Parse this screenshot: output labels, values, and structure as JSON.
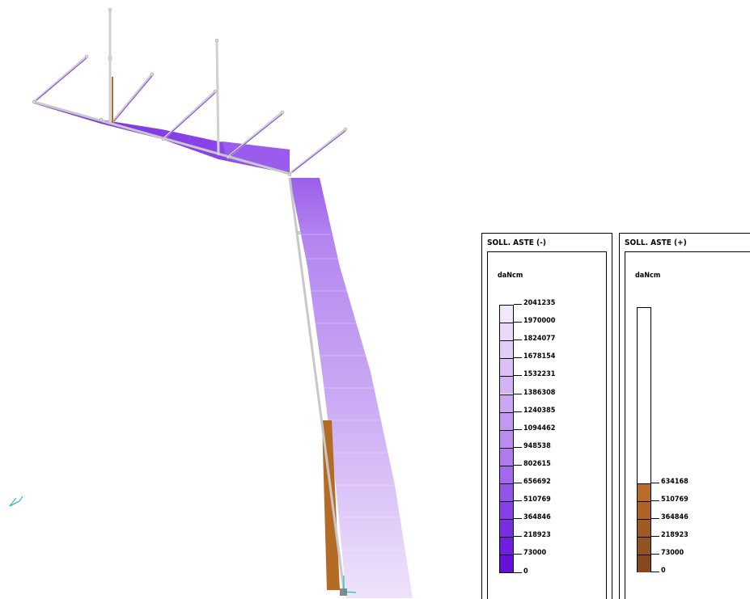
{
  "legend_neg": {
    "title": "SOLL. ASTE (-)",
    "unit": "daNcm",
    "levels": [
      "2041235",
      "1970000",
      "1824077",
      "1678154",
      "1532231",
      "1386308",
      "1240385",
      "1094462",
      "948538",
      "802615",
      "656692",
      "510769",
      "364846",
      "218923",
      "73000",
      "0"
    ],
    "colors": [
      "#f2e8fb",
      "#e9dafa",
      "#e2cdf8",
      "#dac0f6",
      "#d3b3f4",
      "#cba6f2",
      "#c398f0",
      "#bc8bee",
      "#b07aec",
      "#a468ea",
      "#9554e8",
      "#8740e5",
      "#7a2ee2",
      "#6f20dd",
      "#6512d8",
      "#5e06d2"
    ]
  },
  "legend_pos": {
    "title": "SOLL. ASTE (+)",
    "unit": "daNcm",
    "levels": [
      "634168",
      "510769",
      "364846",
      "218923",
      "73000",
      "0"
    ],
    "colors": [
      "#b96d2a",
      "#ae6427",
      "#a05b24",
      "#935321",
      "#86491d"
    ]
  },
  "diagram": {
    "beam_fill_dark": "#8440e8",
    "beam_fill_light": "#c9a6f3",
    "positive_fill": "#b46b26",
    "member_color": "#c8c8c8"
  }
}
